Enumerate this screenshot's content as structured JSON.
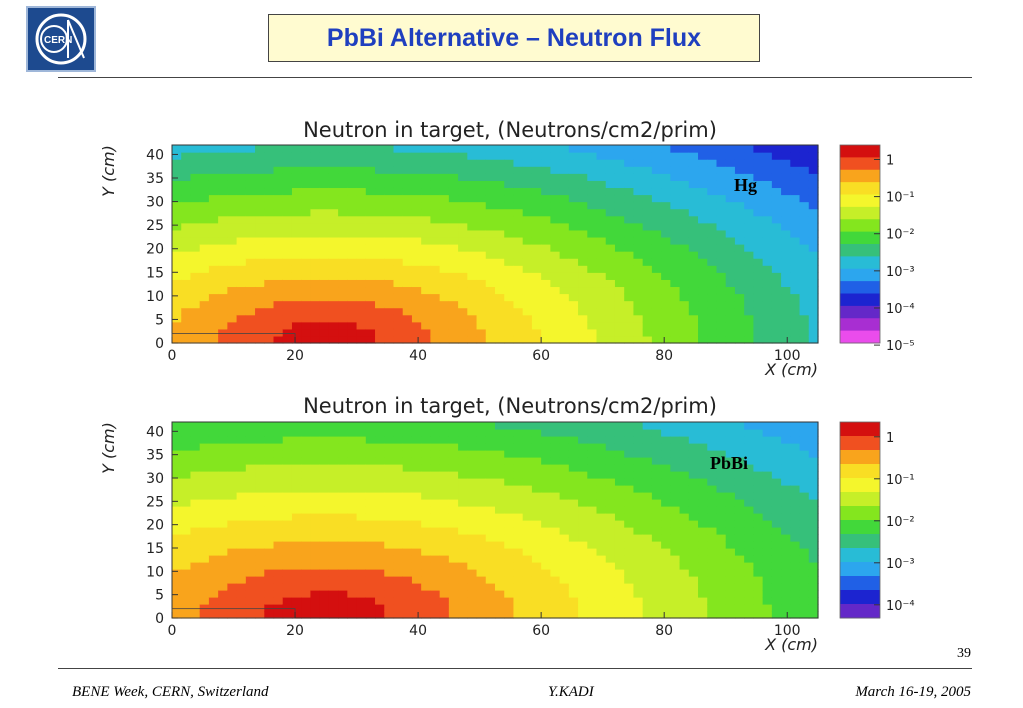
{
  "slide": {
    "title": "PbBi Alternative – Neutron Flux",
    "page_number": "39",
    "footer_left": "BENE Week, CERN, Switzerland",
    "footer_center": "Y.KADI",
    "footer_right": "March 16-19, 2005",
    "logo_text": "CERN"
  },
  "chart_data": [
    {
      "type": "heatmap",
      "title": "Neutron in target, (Neutrons/cm2/prim)",
      "xlabel": "X (cm)",
      "ylabel": "Y (cm)",
      "xlim": [
        0,
        105
      ],
      "ylim": [
        0,
        42
      ],
      "x_ticks": [
        "0",
        "20",
        "40",
        "60",
        "80",
        "100"
      ],
      "y_ticks": [
        "0",
        "5",
        "10",
        "15",
        "20",
        "25",
        "30",
        "35",
        "40"
      ],
      "annotation": "Hg",
      "colorbar_labels": [
        "1",
        "10⁻¹",
        "10⁻²",
        "10⁻³",
        "10⁻⁴",
        "10⁻⁵"
      ],
      "colorbar_colors": [
        "#d40f0f",
        "#f05020",
        "#f9a41c",
        "#f9de24",
        "#f4f62c",
        "#c6ef28",
        "#84e61e",
        "#42d83a",
        "#36c07a",
        "#28bcd6",
        "#2ca6ee",
        "#2060e6",
        "#1c24d0",
        "#6428c8",
        "#a82ed2",
        "#ea4cec"
      ],
      "peak": {
        "x": 25,
        "y": 0
      },
      "decay": {
        "x_per_cm": 0.085,
        "y_per_cm": 0.16
      }
    },
    {
      "type": "heatmap",
      "title": "Neutron in target, (Neutrons/cm2/prim)",
      "xlabel": "X (cm)",
      "ylabel": "Y (cm)",
      "xlim": [
        0,
        105
      ],
      "ylim": [
        0,
        42
      ],
      "x_ticks": [
        "0",
        "20",
        "40",
        "60",
        "80",
        "100"
      ],
      "y_ticks": [
        "0",
        "5",
        "10",
        "15",
        "20",
        "25",
        "30",
        "35",
        "40"
      ],
      "annotation": "PbBi",
      "colorbar_labels": [
        "1",
        "10⁻¹",
        "10⁻²",
        "10⁻³",
        "10⁻⁴"
      ],
      "colorbar_colors": [
        "#d40f0f",
        "#f05020",
        "#f9a41c",
        "#f9de24",
        "#f4f62c",
        "#c6ef28",
        "#84e61e",
        "#42d83a",
        "#36c07a",
        "#28bcd6",
        "#2ca6ee",
        "#2060e6",
        "#1c24d0",
        "#6428c8"
      ],
      "peak": {
        "x": 25,
        "y": 0
      },
      "decay": {
        "x_per_cm": 0.072,
        "y_per_cm": 0.135
      }
    }
  ]
}
